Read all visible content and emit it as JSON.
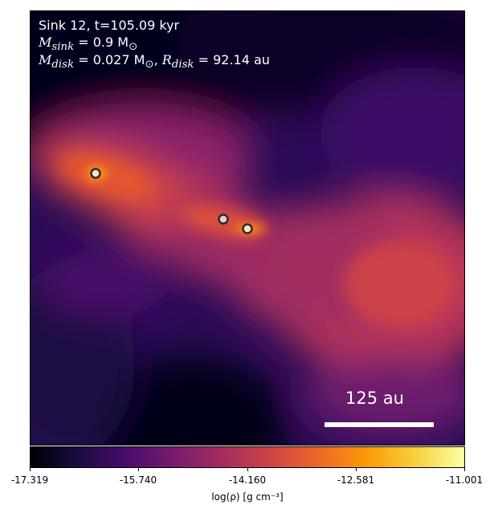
{
  "info": {
    "line1": "Sink 12, t=105.09 kyr",
    "msink_symbol": "M",
    "msink_sub": "sink",
    "msink_value": " = 0.9 M",
    "msun_sub": "⊙",
    "mdisk_symbol": "M",
    "mdisk_sub": "disk",
    "mdisk_value": " = 0.027 M",
    "rdisk_symbol": "R",
    "rdisk_sub": "disk",
    "rdisk_value": " = 92.14 au"
  },
  "scale_bar": {
    "label": "125 au"
  },
  "colorbar": {
    "ticks": [
      "-17.319",
      "-15.740",
      "-14.160",
      "-12.581",
      "-11.001"
    ],
    "axis_label": "log(ρ) [g cm⁻³]",
    "colormap": "inferno"
  }
}
